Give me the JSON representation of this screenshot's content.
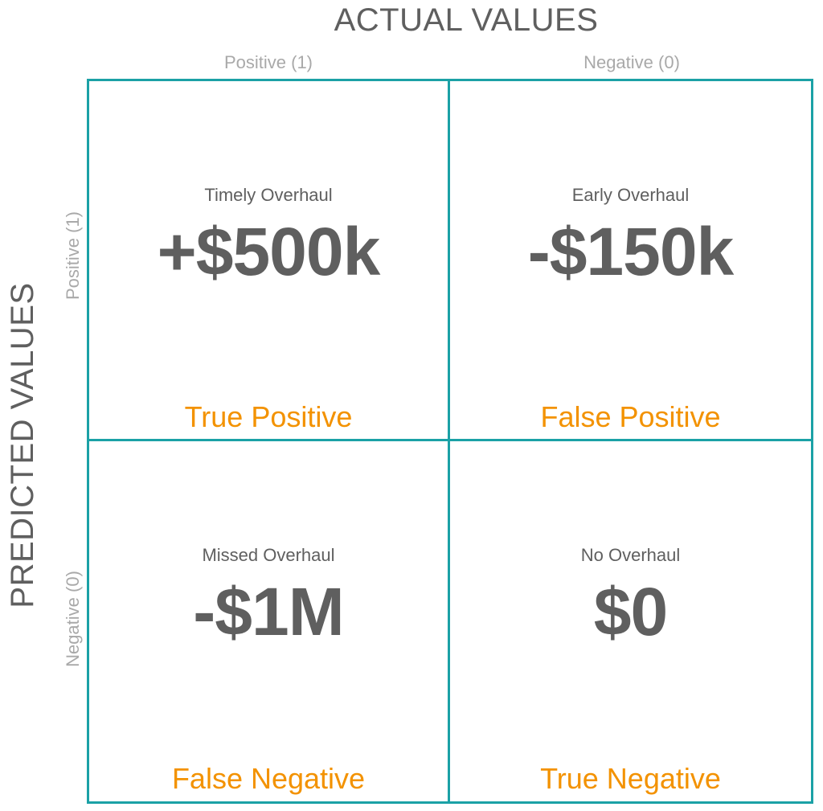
{
  "actual_axis": {
    "title": "ACTUAL VALUES",
    "positive_label": "Positive (1)",
    "negative_label": "Negative (0)"
  },
  "predicted_axis": {
    "title": "PREDICTED VALUES",
    "positive_label": "Positive (1)",
    "negative_label": "Negative (0)"
  },
  "cells": {
    "true_positive": {
      "scenario": "Timely Overhaul",
      "value": "+$500k",
      "class_label": "True Positive"
    },
    "false_positive": {
      "scenario": "Early Overhaul",
      "value": "-$150k",
      "class_label": "False Positive"
    },
    "false_negative": {
      "scenario": "Missed Overhaul",
      "value": "-$1M",
      "class_label": "False Negative"
    },
    "true_negative": {
      "scenario": "No Overhaul",
      "value": "$0",
      "class_label": "True Negative"
    }
  },
  "colors": {
    "grid_border": "#1ba1a6",
    "class_label": "#f39200",
    "primary_text": "#5f5f5f",
    "axis_label": "#a9a9a9"
  }
}
